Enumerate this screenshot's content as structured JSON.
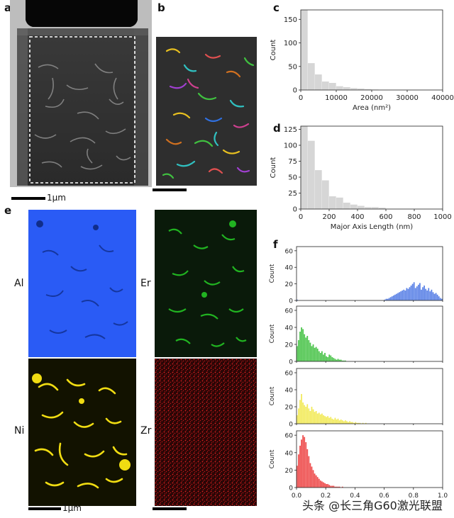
{
  "panels": {
    "a": {
      "label": "a",
      "scale_label": "1μm"
    },
    "b": {
      "label": "b"
    },
    "c": {
      "label": "c"
    },
    "d": {
      "label": "d"
    },
    "e": {
      "label": "e",
      "scale_label": "1μm",
      "elements": [
        "Al",
        "Er",
        "Ni",
        "Zr"
      ]
    },
    "f": {
      "label": "f"
    }
  },
  "colors": {
    "Al": "#2a5bf5",
    "Er": "#21b321",
    "Ni": "#f0dc12",
    "Zr": "#e11d1d",
    "hist_gray": "#d6d6d6",
    "f_blue": "#5b82e6",
    "f_green": "#4cc44c",
    "f_yellow": "#f2ea5a",
    "f_red": "#ee4b4b"
  },
  "watermark": "头条 @长三角G60激光联盟",
  "chart_data": [
    {
      "type": "bar",
      "panel": "c",
      "xlabel": "Area (nm²)",
      "ylabel": "Count",
      "xlim": [
        0,
        40000
      ],
      "ylim": [
        0,
        170
      ],
      "xticks": [
        0,
        10000,
        20000,
        30000,
        40000
      ],
      "yticks": [
        0,
        50,
        100,
        150
      ],
      "bin_width": 2000,
      "values": [
        170,
        57,
        33,
        18,
        15,
        8,
        6,
        4,
        3,
        2,
        1,
        0,
        0,
        0,
        0,
        0,
        0,
        0,
        0,
        0
      ]
    },
    {
      "type": "bar",
      "panel": "d",
      "xlabel": "Major Axis Length (nm)",
      "ylabel": "Count",
      "xlim": [
        0,
        1000
      ],
      "ylim": [
        0,
        130
      ],
      "xticks": [
        0,
        200,
        400,
        600,
        800,
        1000
      ],
      "yticks": [
        0,
        25,
        50,
        75,
        100,
        125
      ],
      "bin_width": 50,
      "values": [
        130,
        107,
        61,
        45,
        20,
        18,
        10,
        7,
        5,
        3,
        3,
        2,
        0,
        0,
        0,
        0,
        0,
        0,
        0,
        0
      ]
    },
    {
      "type": "bar",
      "panel": "f",
      "ylabel": "Count",
      "xlim": [
        0,
        1
      ],
      "ylim": [
        0,
        65
      ],
      "xticks": [
        0,
        0.2,
        0.4,
        0.6,
        0.8,
        1.0
      ],
      "xtick_labels": [
        "0.0",
        "0.2",
        "0.4",
        "0.6",
        "0.8",
        "1.0"
      ],
      "yticks": [
        0,
        20,
        40,
        60
      ],
      "bin_width": 0.01,
      "series": [
        {
          "color": "#5b82e6",
          "values": [
            1,
            0,
            0,
            0,
            0,
            0,
            0,
            0,
            0,
            0,
            0,
            0,
            0,
            0,
            0,
            0,
            0,
            0,
            0,
            0,
            0,
            0,
            0,
            0,
            0,
            0,
            0,
            0,
            0,
            0,
            0,
            0,
            0,
            0,
            0,
            0,
            0,
            0,
            0,
            0,
            0,
            0,
            0,
            0,
            0,
            0,
            0,
            0,
            0,
            0,
            0,
            0,
            0,
            0,
            0,
            0,
            0,
            0,
            0,
            0,
            1,
            2,
            2,
            3,
            4,
            5,
            6,
            7,
            8,
            9,
            10,
            11,
            12,
            13,
            12,
            15,
            14,
            16,
            18,
            20,
            22,
            15,
            17,
            19,
            21,
            13,
            16,
            18,
            14,
            12,
            15,
            11,
            13,
            10,
            8,
            9,
            7,
            5,
            3,
            2
          ]
        },
        {
          "color": "#4cc44c",
          "values": [
            18,
            25,
            35,
            40,
            38,
            32,
            28,
            30,
            25,
            22,
            18,
            20,
            16,
            17,
            15,
            12,
            10,
            12,
            8,
            10,
            6,
            5,
            8,
            7,
            5,
            4,
            3,
            2,
            3,
            2,
            2,
            1,
            1,
            1,
            0,
            0,
            0,
            0,
            0,
            0,
            0,
            0,
            0,
            0,
            0,
            0,
            0,
            0,
            0,
            0,
            0,
            0,
            0,
            0,
            0,
            0,
            0,
            0,
            0,
            0,
            0,
            0,
            0,
            0,
            0,
            0,
            0,
            0,
            0,
            0,
            0,
            0,
            0,
            0,
            0,
            0,
            0,
            0,
            0,
            0,
            0,
            0,
            0,
            0,
            0,
            0,
            0,
            0,
            0,
            0,
            0,
            0,
            0,
            0,
            0,
            0,
            0,
            0,
            0,
            0
          ]
        },
        {
          "color": "#f2ea5a",
          "values": [
            10,
            18,
            28,
            35,
            25,
            22,
            20,
            23,
            18,
            15,
            20,
            17,
            14,
            15,
            12,
            13,
            11,
            12,
            10,
            9,
            8,
            9,
            7,
            8,
            6,
            5,
            7,
            5,
            6,
            4,
            5,
            4,
            3,
            4,
            3,
            2,
            3,
            2,
            2,
            1,
            2,
            1,
            1,
            1,
            0,
            1,
            0,
            1,
            0,
            0,
            0,
            0,
            0,
            0,
            0,
            0,
            0,
            0,
            0,
            0,
            0,
            0,
            0,
            0,
            0,
            0,
            0,
            0,
            0,
            0,
            0,
            0,
            0,
            0,
            0,
            0,
            0,
            0,
            0,
            0,
            0,
            0,
            0,
            0,
            0,
            0,
            0,
            0,
            0,
            0,
            0,
            0,
            0,
            0,
            0,
            0,
            0,
            0,
            0,
            0
          ]
        },
        {
          "color": "#ee4b4b",
          "values": [
            25,
            38,
            48,
            55,
            60,
            58,
            52,
            44,
            36,
            28,
            24,
            20,
            16,
            14,
            12,
            10,
            8,
            7,
            6,
            5,
            4,
            4,
            3,
            2,
            2,
            2,
            1,
            1,
            1,
            1,
            0,
            1,
            0,
            0,
            0,
            0,
            0,
            0,
            0,
            0,
            0,
            0,
            0,
            0,
            0,
            0,
            0,
            0,
            0,
            0,
            0,
            0,
            0,
            0,
            0,
            0,
            0,
            0,
            0,
            0,
            0,
            0,
            0,
            0,
            0,
            0,
            0,
            0,
            0,
            0,
            0,
            0,
            0,
            0,
            0,
            0,
            0,
            0,
            0,
            0,
            0,
            0,
            0,
            0,
            0,
            0,
            0,
            0,
            0,
            0,
            0,
            0,
            0,
            0,
            0,
            0,
            0,
            0,
            0,
            0
          ]
        }
      ]
    }
  ]
}
